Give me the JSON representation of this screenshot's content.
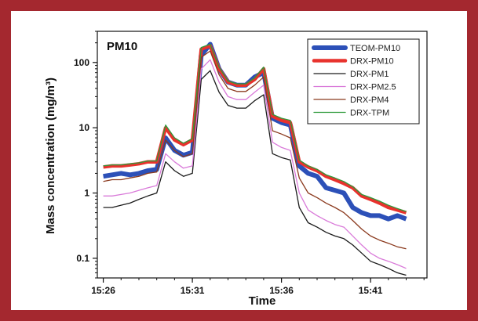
{
  "colors": {
    "frame_border": "#a4282f",
    "TEOM-PM10": "#2c50b8",
    "DRX-PM10": "#e8322d",
    "DRX-PM1": "#1a1a1a",
    "DRX-PM2.5": "#d97ad9",
    "DRX-PM4": "#8b3a1e",
    "DRX-TPM": "#2e9a3a"
  },
  "chart_data": {
    "type": "line",
    "title": "PM10",
    "xlabel": "Time",
    "ylabel": "Mass concentration (mg/m³)",
    "yscale": "log",
    "ylim": [
      0.05,
      300
    ],
    "xlim": [
      "15:25:40",
      "15:44:10"
    ],
    "xticks": [
      "15:26",
      "15:31",
      "15:36",
      "15:41"
    ],
    "yticks": [
      "0.1",
      "1",
      "10",
      "100"
    ],
    "legend_position": "top-right",
    "x": [
      "15:26:00",
      "15:26:30",
      "15:27:00",
      "15:27:30",
      "15:28:00",
      "15:28:30",
      "15:29:00",
      "15:29:30",
      "15:30:00",
      "15:30:30",
      "15:31:00",
      "15:31:30",
      "15:32:00",
      "15:32:30",
      "15:33:00",
      "15:33:30",
      "15:34:00",
      "15:34:30",
      "15:35:00",
      "15:35:30",
      "15:36:00",
      "15:36:30",
      "15:37:00",
      "15:37:30",
      "15:38:00",
      "15:38:30",
      "15:39:00",
      "15:39:30",
      "15:40:00",
      "15:40:30",
      "15:41:00",
      "15:41:30",
      "15:42:00",
      "15:42:30",
      "15:43:00"
    ],
    "series": [
      {
        "name": "TEOM-PM10",
        "values": [
          1.8,
          1.9,
          2.0,
          1.9,
          2.0,
          2.2,
          2.3,
          7.0,
          4.5,
          3.8,
          4.2,
          130,
          190,
          80,
          50,
          45,
          45,
          60,
          70,
          14,
          12,
          11,
          2.6,
          2.0,
          1.8,
          1.2,
          1.1,
          1.0,
          0.6,
          0.5,
          0.45,
          0.45,
          0.4,
          0.45,
          0.4
        ]
      },
      {
        "name": "DRX-PM10",
        "values": [
          2.5,
          2.6,
          2.6,
          2.7,
          2.8,
          3.0,
          3.0,
          10,
          6.5,
          5.5,
          6.5,
          160,
          180,
          80,
          50,
          45,
          45,
          55,
          80,
          15,
          13,
          12,
          3.0,
          2.5,
          2.2,
          1.8,
          1.6,
          1.4,
          1.2,
          0.9,
          0.8,
          0.7,
          0.6,
          0.55,
          0.5
        ]
      },
      {
        "name": "DRX-PM1",
        "values": [
          0.6,
          0.6,
          0.65,
          0.7,
          0.8,
          0.9,
          1.0,
          3.0,
          2.2,
          1.8,
          2.0,
          55,
          75,
          35,
          22,
          20,
          20,
          26,
          32,
          4.0,
          3.5,
          3.2,
          0.6,
          0.35,
          0.3,
          0.25,
          0.22,
          0.2,
          0.16,
          0.12,
          0.09,
          0.08,
          0.07,
          0.06,
          0.055
        ]
      },
      {
        "name": "DRX-PM2.5",
        "values": [
          0.9,
          0.9,
          0.95,
          1.0,
          1.1,
          1.2,
          1.3,
          4.0,
          3.0,
          2.4,
          2.6,
          80,
          110,
          50,
          30,
          27,
          27,
          35,
          45,
          6.0,
          5.0,
          4.5,
          1.0,
          0.55,
          0.45,
          0.38,
          0.33,
          0.3,
          0.22,
          0.16,
          0.12,
          0.1,
          0.09,
          0.08,
          0.07
        ]
      },
      {
        "name": "DRX-PM4",
        "values": [
          1.5,
          1.6,
          1.6,
          1.7,
          1.8,
          2.0,
          2.1,
          6.5,
          4.5,
          3.6,
          4.0,
          120,
          150,
          65,
          40,
          36,
          36,
          45,
          60,
          9.0,
          8.0,
          7.0,
          1.7,
          1.0,
          0.85,
          0.7,
          0.6,
          0.5,
          0.38,
          0.28,
          0.22,
          0.19,
          0.17,
          0.15,
          0.14
        ]
      },
      {
        "name": "DRX-TPM",
        "values": [
          2.6,
          2.7,
          2.7,
          2.8,
          2.9,
          3.1,
          3.1,
          11,
          7.0,
          5.8,
          6.8,
          170,
          190,
          85,
          52,
          47,
          47,
          58,
          85,
          16,
          14,
          13,
          3.2,
          2.6,
          2.3,
          1.9,
          1.7,
          1.5,
          1.25,
          0.95,
          0.85,
          0.75,
          0.65,
          0.58,
          0.52
        ]
      }
    ]
  }
}
